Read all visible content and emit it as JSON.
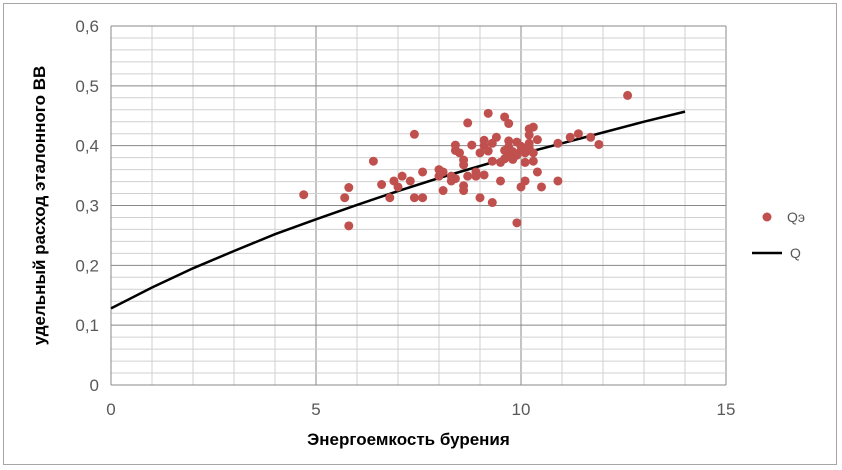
{
  "chart_data": {
    "type": "scatter",
    "title": "",
    "xlabel": "Энергоемкость бурения",
    "ylabel": "удельный расход эталонного ВВ",
    "xlim": [
      0,
      15
    ],
    "ylim": [
      0,
      0.6
    ],
    "x_ticks": [
      "0",
      "5",
      "10",
      "15"
    ],
    "y_ticks": [
      "0",
      "0,1",
      "0,2",
      "0,3",
      "0,4",
      "0,5",
      "0,6"
    ],
    "grid": true,
    "legend_position": "right",
    "series": [
      {
        "name": "Qэ",
        "kind": "scatter",
        "color": "#c0504d",
        "points": [
          [
            4.7,
            0.318
          ],
          [
            5.7,
            0.313
          ],
          [
            5.8,
            0.33
          ],
          [
            5.8,
            0.266
          ],
          [
            6.4,
            0.374
          ],
          [
            6.6,
            0.335
          ],
          [
            6.8,
            0.313
          ],
          [
            6.9,
            0.341
          ],
          [
            7.0,
            0.331
          ],
          [
            7.1,
            0.349
          ],
          [
            7.3,
            0.341
          ],
          [
            7.4,
            0.419
          ],
          [
            7.4,
            0.313
          ],
          [
            7.6,
            0.356
          ],
          [
            7.6,
            0.313
          ],
          [
            8.0,
            0.36
          ],
          [
            8.0,
            0.349
          ],
          [
            8.1,
            0.356
          ],
          [
            8.1,
            0.325
          ],
          [
            8.3,
            0.341
          ],
          [
            8.3,
            0.349
          ],
          [
            8.4,
            0.401
          ],
          [
            8.4,
            0.392
          ],
          [
            8.4,
            0.345
          ],
          [
            8.5,
            0.388
          ],
          [
            8.6,
            0.376
          ],
          [
            8.6,
            0.333
          ],
          [
            8.6,
            0.325
          ],
          [
            8.6,
            0.368
          ],
          [
            8.7,
            0.438
          ],
          [
            8.7,
            0.349
          ],
          [
            8.8,
            0.401
          ],
          [
            8.9,
            0.356
          ],
          [
            8.9,
            0.349
          ],
          [
            9.0,
            0.313
          ],
          [
            9.0,
            0.388
          ],
          [
            9.1,
            0.4
          ],
          [
            9.1,
            0.409
          ],
          [
            9.1,
            0.351
          ],
          [
            9.2,
            0.454
          ],
          [
            9.2,
            0.391
          ],
          [
            9.3,
            0.374
          ],
          [
            9.3,
            0.305
          ],
          [
            9.3,
            0.404
          ],
          [
            9.4,
            0.414
          ],
          [
            9.5,
            0.341
          ],
          [
            9.5,
            0.372
          ],
          [
            9.6,
            0.448
          ],
          [
            9.6,
            0.378
          ],
          [
            9.6,
            0.392
          ],
          [
            9.7,
            0.437
          ],
          [
            9.7,
            0.408
          ],
          [
            9.7,
            0.398
          ],
          [
            9.7,
            0.384
          ],
          [
            9.8,
            0.39
          ],
          [
            9.8,
            0.377
          ],
          [
            9.9,
            0.406
          ],
          [
            9.9,
            0.271
          ],
          [
            9.9,
            0.384
          ],
          [
            10.0,
            0.399
          ],
          [
            10.0,
            0.331
          ],
          [
            10.0,
            0.391
          ],
          [
            10.1,
            0.341
          ],
          [
            10.1,
            0.372
          ],
          [
            10.1,
            0.388
          ],
          [
            10.2,
            0.428
          ],
          [
            10.2,
            0.418
          ],
          [
            10.2,
            0.404
          ],
          [
            10.2,
            0.396
          ],
          [
            10.3,
            0.431
          ],
          [
            10.3,
            0.388
          ],
          [
            10.3,
            0.374
          ],
          [
            10.4,
            0.41
          ],
          [
            10.4,
            0.356
          ],
          [
            10.5,
            0.331
          ],
          [
            10.9,
            0.404
          ],
          [
            10.9,
            0.341
          ],
          [
            11.2,
            0.414
          ],
          [
            11.4,
            0.42
          ],
          [
            11.7,
            0.414
          ],
          [
            11.9,
            0.402
          ],
          [
            12.6,
            0.484
          ]
        ]
      },
      {
        "name": "Q",
        "kind": "line",
        "color": "#000000",
        "x": [
          0,
          1,
          2,
          3,
          4,
          5,
          6,
          7,
          8,
          9,
          10,
          11,
          12,
          13,
          14
        ],
        "y": [
          0.128,
          0.163,
          0.195,
          0.224,
          0.252,
          0.277,
          0.301,
          0.324,
          0.346,
          0.366,
          0.386,
          0.404,
          0.422,
          0.44,
          0.457
        ]
      }
    ]
  }
}
